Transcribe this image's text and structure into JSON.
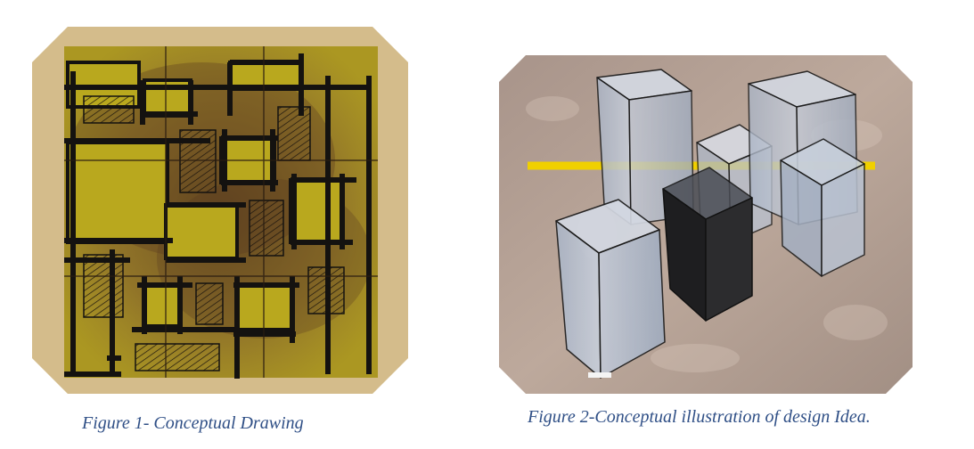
{
  "figures": [
    {
      "id": "figure-1",
      "caption": "Figure 1- Conceptual Drawing",
      "image_subject": "conceptual-drawing",
      "colors": {
        "paper": "#c9a968",
        "yellow": "#b6a31d",
        "ink": "#141210",
        "burn": "#6b4a2a"
      }
    },
    {
      "id": "figure-2",
      "caption": "Figure 2-Conceptual illustration of design Idea.",
      "image_subject": "conceptual-illustration",
      "colors": {
        "background": "#b39b8e",
        "glass": "#b8c1d1",
        "dark-block": "#242424",
        "axis-line": "#f0d000"
      }
    }
  ]
}
